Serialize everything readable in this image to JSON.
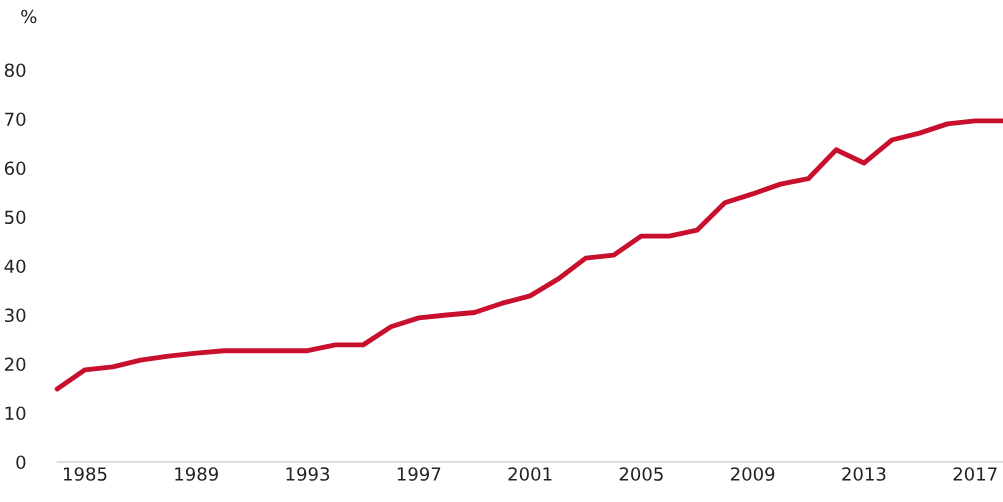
{
  "chart_data": {
    "type": "line",
    "ylabel": "%",
    "x": [
      1984,
      1985,
      1986,
      1987,
      1988,
      1989,
      1990,
      1991,
      1992,
      1993,
      1994,
      1995,
      1996,
      1997,
      1998,
      1999,
      2000,
      2001,
      2002,
      2003,
      2004,
      2005,
      2006,
      2007,
      2008,
      2009,
      2010,
      2011,
      2012,
      2013,
      2014,
      2015,
      2016,
      2017,
      2018
    ],
    "series": [
      {
        "color": "#c8102e",
        "values": [
          14.9,
          18.8,
          19.4,
          20.8,
          21.6,
          22.2,
          22.7,
          22.7,
          22.7,
          22.7,
          23.9,
          23.9,
          27.6,
          29.4,
          30,
          30.5,
          32.4,
          33.9,
          37.3,
          41.6,
          42.2,
          46.1,
          46.1,
          47.3,
          52.9,
          54.7,
          56.7,
          57.8,
          63.7,
          61,
          65.7,
          67.1,
          69,
          69.6,
          69.6
        ]
      }
    ],
    "xlim": [
      1984,
      2018
    ],
    "ylim": [
      0,
      80
    ],
    "xticks": [
      1985,
      1989,
      1993,
      1997,
      2001,
      2005,
      2009,
      2013,
      2017
    ],
    "yticks": [
      0,
      10,
      20,
      30,
      40,
      50,
      60,
      70,
      80
    ],
    "grid": false,
    "marker": "none",
    "line_style": "solid"
  }
}
